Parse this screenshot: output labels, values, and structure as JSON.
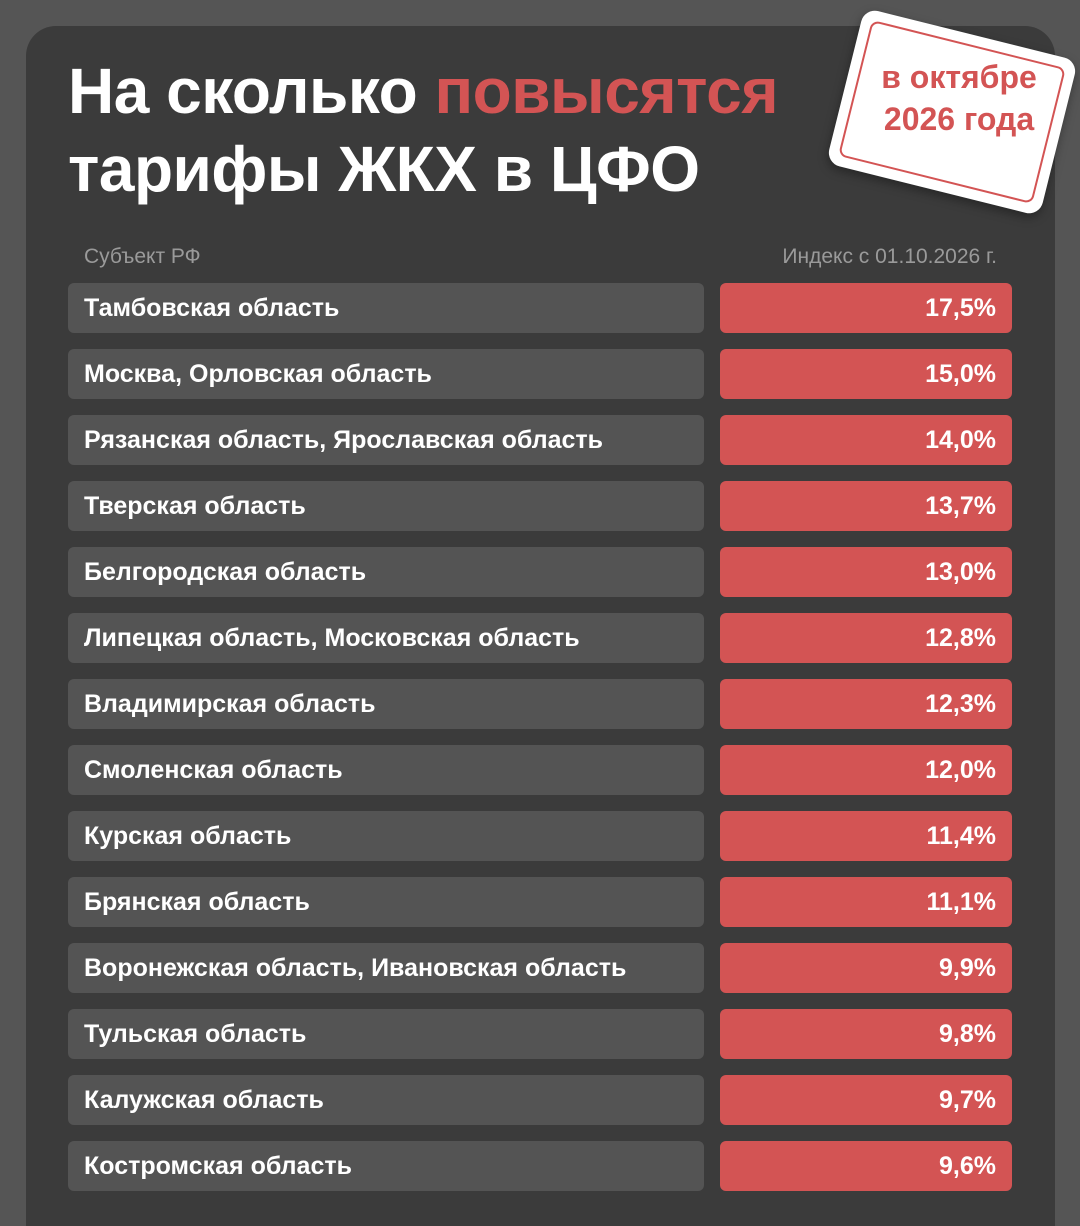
{
  "header": {
    "title_part1": "На сколько ",
    "title_accent": "повысятся",
    "title_line2": "тарифы ЖКХ в ЦФО",
    "stamp_line1": "в октябре",
    "stamp_line2": "2026 года"
  },
  "colors": {
    "background": "#555555",
    "panel": "#3b3b3b",
    "row_bg": "#545454",
    "accent": "#d35454",
    "text": "#ffffff",
    "muted": "#9a9a9a"
  },
  "chart_data": {
    "type": "table",
    "columns": [
      "Субъект РФ",
      "Индекс с 01.10.2026 г."
    ],
    "rows": [
      {
        "region": "Тамбовская область",
        "value": 17.5,
        "label": "17,5%"
      },
      {
        "region": "Москва, Орловская область",
        "value": 15.0,
        "label": "15,0%"
      },
      {
        "region": "Рязанская область, Ярославская область",
        "value": 14.0,
        "label": "14,0%"
      },
      {
        "region": "Тверская область",
        "value": 13.7,
        "label": "13,7%"
      },
      {
        "region": "Белгородская область",
        "value": 13.0,
        "label": "13,0%"
      },
      {
        "region": "Липецкая область, Московская область",
        "value": 12.8,
        "label": "12,8%"
      },
      {
        "region": "Владимирская область",
        "value": 12.3,
        "label": "12,3%"
      },
      {
        "region": "Смоленская область",
        "value": 12.0,
        "label": "12,0%"
      },
      {
        "region": "Курская область",
        "value": 11.4,
        "label": "11,4%"
      },
      {
        "region": "Брянская область",
        "value": 11.1,
        "label": "11,1%"
      },
      {
        "region": "Воронежская область, Ивановская область",
        "value": 9.9,
        "label": "9,9%"
      },
      {
        "region": "Тульская область",
        "value": 9.8,
        "label": "9,8%"
      },
      {
        "region": "Калужская область",
        "value": 9.7,
        "label": "9,7%"
      },
      {
        "region": "Костромская область",
        "value": 9.6,
        "label": "9,6%"
      }
    ]
  }
}
